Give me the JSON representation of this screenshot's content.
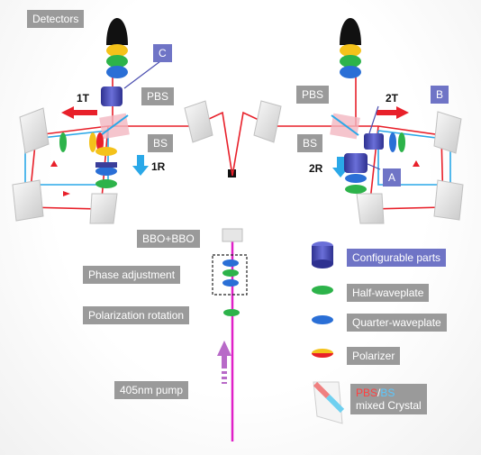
{
  "labels": {
    "detectors": "Detectors",
    "pbs_left": "PBS",
    "pbs_right": "PBS",
    "bs_left": "BS",
    "bs_right": "BS",
    "port_1T": "1T",
    "port_1R": "1R",
    "port_2T": "2T",
    "port_2R": "2R",
    "part_A": "A",
    "part_B": "B",
    "part_C": "C",
    "bbo": "BBO+BBO",
    "phase_adjustment": "Phase adjustment",
    "polarization_rotation": "Polarization rotation",
    "pump": "405nm pump"
  },
  "legend": {
    "items": [
      {
        "label": "Configurable parts",
        "icon": "configurable-part-icon"
      },
      {
        "label": "Half-waveplate",
        "icon": "half-waveplate-icon"
      },
      {
        "label": "Quarter-waveplate",
        "icon": "quarter-waveplate-icon"
      },
      {
        "label": "Polarizer",
        "icon": "polarizer-icon"
      }
    ],
    "mixed_crystal": {
      "pbs": "PBS",
      "slash": "/",
      "bs": "BS",
      "rest": "mixed Crystal"
    }
  },
  "colors": {
    "beam_red": "#e8202a",
    "beam_cyan": "#2aa8e8",
    "pump_magenta": "#e020c8",
    "half_waveplate": "#2db34a",
    "quarter_waveplate": "#2a6fd6",
    "polarizer": "#f4c21a",
    "configurable": "#4b4fb0",
    "label_bg": "#9a9a9a",
    "label_blue_bg": "#6f74c6"
  }
}
